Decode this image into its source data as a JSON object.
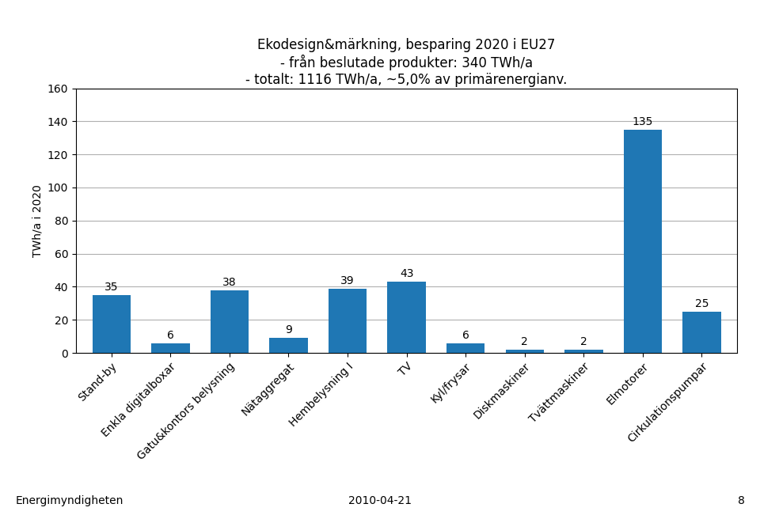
{
  "chart_data": {
    "type": "bar",
    "title": "Ekodesign&märkning, besparing 2020 i EU27\n- från beslutade produkter: 340 TWh/a\n- totalt: 1116 TWh/a, ~5,0% av primärenergianv.",
    "ylabel": "TWh/a i 2020",
    "categories": [
      "Stand-by",
      "Enkla digitalboxar",
      "Gatu&kontors belysning",
      "Nätaggregat",
      "Hembelysning I",
      "TV",
      "Kyl/frysar",
      "Diskmaskiner",
      "Tvättmaskiner",
      "Elmotorer",
      "Cirkulationspumpar"
    ],
    "values": [
      35,
      6,
      38,
      9,
      39,
      43,
      6,
      2,
      2,
      135,
      25
    ],
    "ylim": [
      0,
      160
    ],
    "yticks": [
      0,
      20,
      40,
      60,
      80,
      100,
      120,
      140,
      160
    ],
    "grid": true,
    "data_labels": true,
    "annotations": [
      "Energimyndigheten",
      "2010-04-21",
      "8"
    ]
  }
}
